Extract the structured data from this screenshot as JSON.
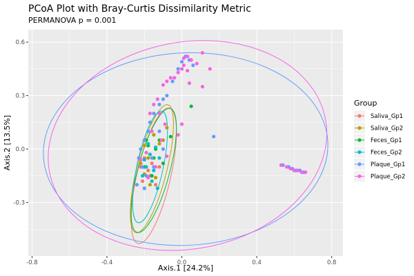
{
  "chart_data": {
    "type": "scatter",
    "title": "PCoA Plot with Bray-Curtis Dissimilarity Metric",
    "subtitle": "PERMANOVA p = 0.001",
    "xlabel": "Axis.1   [24.2%]",
    "ylabel": "Axis.2   [13.5%]",
    "xlim": [
      -0.82,
      0.86
    ],
    "ylim": [
      -0.6,
      0.67
    ],
    "xticks": [
      -0.8,
      -0.4,
      0.0,
      0.4,
      0.8
    ],
    "xtick_labels": [
      "-0.8",
      "-0.4",
      "0.0",
      "0.4",
      "0.8"
    ],
    "yticks": [
      -0.3,
      0.0,
      0.3,
      0.6
    ],
    "ytick_labels": [
      "-0.3",
      "0.0",
      "0.3",
      "0.6"
    ],
    "grid": true,
    "legend_title": "Group",
    "legend_position": "right",
    "ellipses": true,
    "series": [
      {
        "name": "Saliva_Gp1",
        "color": "#F8766D",
        "ellipse": {
          "cx": -0.15,
          "cy": -0.15,
          "rx": 0.09,
          "ry": 0.39,
          "angle": 13
        },
        "points": [
          [
            -0.22,
            -0.1
          ],
          [
            -0.2,
            -0.05
          ],
          [
            -0.18,
            -0.12
          ],
          [
            -0.21,
            -0.18
          ],
          [
            -0.16,
            -0.08
          ],
          [
            -0.19,
            -0.02
          ],
          [
            -0.17,
            -0.15
          ],
          [
            -0.14,
            -0.2
          ],
          [
            -0.2,
            -0.22
          ],
          [
            -0.12,
            -0.1
          ]
        ]
      },
      {
        "name": "Saliva_Gp2",
        "color": "#B79F00",
        "ellipse": {
          "cx": -0.16,
          "cy": -0.11,
          "rx": 0.08,
          "ry": 0.37,
          "angle": 14
        },
        "points": [
          [
            -0.2,
            0.02
          ],
          [
            -0.18,
            -0.05
          ],
          [
            -0.15,
            0.08
          ],
          [
            -0.12,
            0.03
          ],
          [
            -0.2,
            -0.14
          ],
          [
            -0.08,
            0.12
          ],
          [
            -0.22,
            -0.08
          ],
          [
            -0.14,
            -0.16
          ],
          [
            -0.1,
            0.05
          ],
          [
            -0.17,
            -0.2
          ]
        ]
      },
      {
        "name": "Feces_Gp1",
        "color": "#00BA38",
        "ellipse": {
          "cx": -0.15,
          "cy": -0.12,
          "rx": 0.085,
          "ry": 0.36,
          "angle": 15
        },
        "points": [
          [
            -0.18,
            0.02
          ],
          [
            -0.15,
            -0.05
          ],
          [
            -0.12,
            0.05
          ],
          [
            -0.2,
            -0.1
          ],
          [
            -0.16,
            -0.15
          ],
          [
            -0.06,
            0.07
          ],
          [
            0.05,
            0.24
          ],
          [
            -0.14,
            0.0
          ],
          [
            -0.1,
            -0.08
          ],
          [
            -0.19,
            0.05
          ]
        ]
      },
      {
        "name": "Feces_Gp2",
        "color": "#00BFC4",
        "ellipse": {
          "cx": -0.17,
          "cy": -0.1,
          "rx": 0.07,
          "ry": 0.32,
          "angle": 12
        },
        "points": [
          [
            -0.17,
            -0.03
          ],
          [
            -0.19,
            -0.1
          ],
          [
            -0.16,
            -0.18
          ],
          [
            -0.14,
            0.01
          ],
          [
            -0.2,
            -0.06
          ],
          [
            -0.15,
            -0.12
          ],
          [
            -0.13,
            -0.22
          ],
          [
            -0.21,
            -0.15
          ],
          [
            -0.18,
            0.03
          ],
          [
            -0.12,
            -0.05
          ]
        ]
      },
      {
        "name": "Plaque_Gp1",
        "color": "#619CFF",
        "ellipse": {
          "cx": 0.02,
          "cy": 0.0,
          "rx": 0.76,
          "ry": 0.54,
          "angle": -3
        },
        "points": [
          [
            0.02,
            0.52
          ],
          [
            0.04,
            0.5
          ],
          [
            0.0,
            0.49
          ],
          [
            0.06,
            0.47
          ],
          [
            -0.02,
            0.45
          ],
          [
            -0.05,
            0.38
          ],
          [
            -0.08,
            0.3
          ],
          [
            -0.1,
            0.28
          ],
          [
            -0.12,
            0.25
          ],
          [
            -0.15,
            0.2
          ],
          [
            -0.17,
            0.15
          ],
          [
            -0.18,
            0.1
          ],
          [
            -0.2,
            0.05
          ],
          [
            -0.22,
            0.0
          ],
          [
            -0.23,
            -0.05
          ],
          [
            -0.21,
            -0.1
          ],
          [
            -0.19,
            -0.15
          ],
          [
            -0.2,
            -0.22
          ],
          [
            -0.24,
            -0.2
          ],
          [
            -0.15,
            -0.1
          ],
          [
            -0.1,
            0.0
          ],
          [
            -0.12,
            0.1
          ],
          [
            -0.16,
            -0.05
          ],
          [
            0.17,
            0.07
          ],
          [
            0.54,
            -0.09
          ],
          [
            0.57,
            -0.1
          ],
          [
            0.59,
            -0.11
          ],
          [
            0.61,
            -0.12
          ],
          [
            0.63,
            -0.12
          ],
          [
            0.65,
            -0.13
          ]
        ]
      },
      {
        "name": "Plaque_Gp2",
        "color": "#F564E3",
        "ellipse": {
          "cx": 0.03,
          "cy": 0.02,
          "rx": 0.75,
          "ry": 0.58,
          "angle": -11
        },
        "points": [
          [
            0.01,
            0.51
          ],
          [
            0.03,
            0.52
          ],
          [
            0.05,
            0.5
          ],
          [
            0.08,
            0.48
          ],
          [
            0.11,
            0.54
          ],
          [
            0.15,
            0.45
          ],
          [
            0.03,
            0.44
          ],
          [
            0.01,
            0.47
          ],
          [
            0.0,
            0.45
          ],
          [
            -0.02,
            0.43
          ],
          [
            -0.04,
            0.4
          ],
          [
            -0.06,
            0.4
          ],
          [
            -0.08,
            0.38
          ],
          [
            -0.1,
            0.36
          ],
          [
            -0.13,
            0.28
          ],
          [
            -0.15,
            0.25
          ],
          [
            -0.17,
            0.2
          ],
          [
            -0.12,
            0.2
          ],
          [
            -0.09,
            0.14
          ],
          [
            -0.16,
            0.1
          ],
          [
            -0.11,
            0.05
          ],
          [
            0.0,
            0.14
          ],
          [
            -0.02,
            0.08
          ],
          [
            0.11,
            0.35
          ],
          [
            0.04,
            0.37
          ],
          [
            -0.19,
            -0.02
          ],
          [
            -0.22,
            -0.06
          ],
          [
            -0.18,
            -0.16
          ],
          [
            -0.14,
            -0.1
          ],
          [
            -0.08,
            -0.04
          ],
          [
            0.53,
            -0.09
          ],
          [
            0.56,
            -0.1
          ],
          [
            0.58,
            -0.11
          ],
          [
            0.6,
            -0.12
          ],
          [
            0.62,
            -0.12
          ],
          [
            0.64,
            -0.13
          ],
          [
            0.66,
            -0.13
          ]
        ]
      }
    ]
  }
}
